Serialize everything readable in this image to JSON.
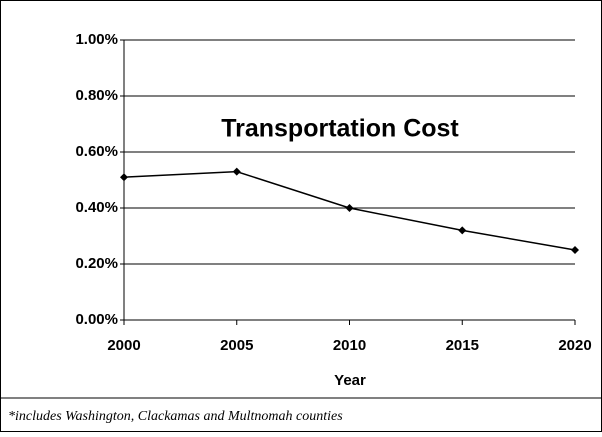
{
  "chart_data": {
    "type": "line",
    "title": "Transportation Cost",
    "x_label": "Year",
    "annotation": "*includes Washington, Clackamas and Multnomah counties",
    "x": [
      2000,
      2005,
      2010,
      2015,
      2020
    ],
    "series": [
      {
        "name": "Transportation Cost",
        "color": "#000000",
        "values": [
          0.51,
          0.53,
          0.4,
          0.32,
          0.25
        ]
      }
    ],
    "xlim": [
      2000,
      2020
    ],
    "xticks": [
      2000,
      2005,
      2010,
      2015,
      2020
    ],
    "ylim": [
      0,
      1
    ],
    "yticks": [
      {
        "value": 0,
        "label": "0.00%"
      },
      {
        "value": 0.2,
        "label": "0.20%"
      },
      {
        "value": 0.4,
        "label": "0.40%"
      },
      {
        "value": 0.6,
        "label": "0.60%"
      },
      {
        "value": 0.8,
        "label": "0.80%"
      },
      {
        "value": 1,
        "label": "1.00%"
      }
    ],
    "grid": true
  }
}
